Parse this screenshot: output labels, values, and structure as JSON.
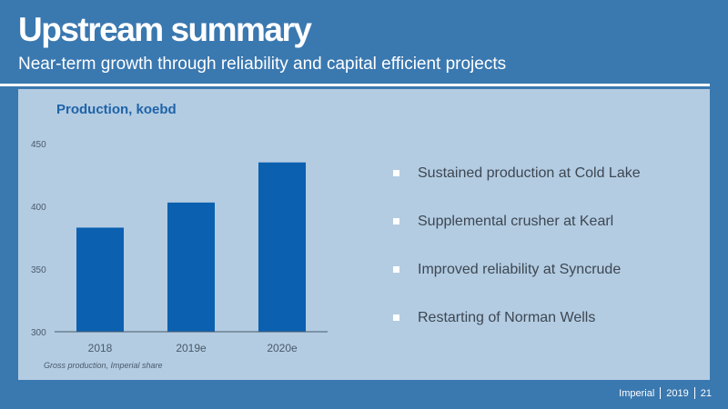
{
  "slide": {
    "title": "Upstream summary",
    "subtitle": "Near-term growth through reliability and capital efficient projects"
  },
  "chart": {
    "footnote": "Gross production, Imperial share"
  },
  "chart_data": {
    "type": "bar",
    "title": "Production, koebd",
    "categories": [
      "2018",
      "2019e",
      "2020e"
    ],
    "values": [
      383,
      403,
      435
    ],
    "ylim": [
      300,
      450
    ],
    "yticks": [
      300,
      350,
      400,
      450
    ],
    "grid": false,
    "bar_color": "#0b60b0"
  },
  "bullets": [
    {
      "text": "Sustained production at Cold Lake"
    },
    {
      "text": "Supplemental crusher at Kearl"
    },
    {
      "text": "Improved reliability at Syncrude"
    },
    {
      "text": "Restarting of Norman Wells"
    }
  ],
  "footer": {
    "company": "Imperial",
    "year": "2019",
    "page": "21"
  }
}
